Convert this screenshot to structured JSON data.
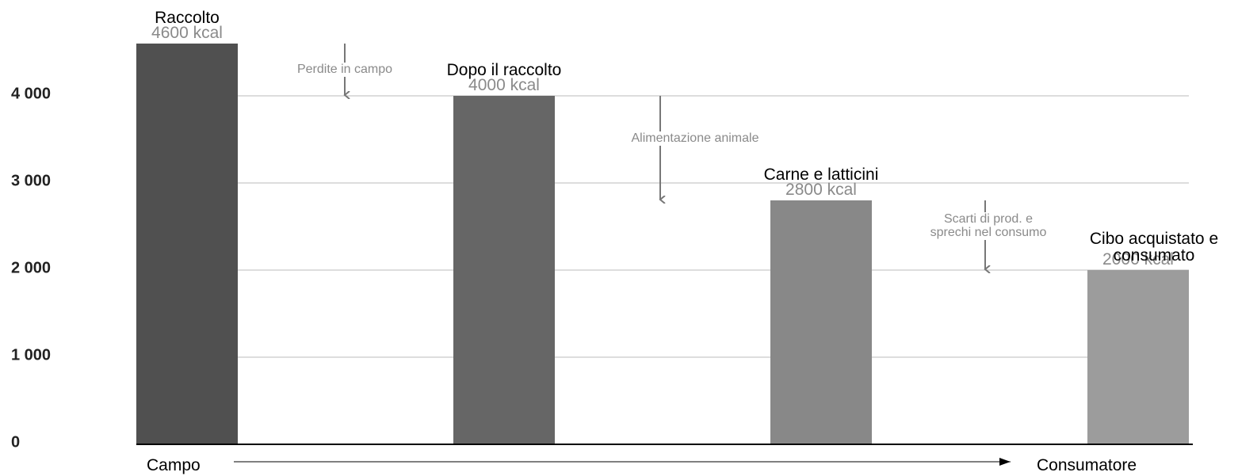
{
  "chart_data": {
    "type": "bar",
    "categories": [
      "Raccolto",
      "Dopo il raccolto",
      "Carne e latticini",
      "Cibo acquistato e consumato"
    ],
    "values": [
      4600,
      4000,
      2800,
      2000
    ],
    "value_labels": [
      "4600 kcal",
      "4000 kcal",
      "2800 kcal",
      "2000 kcal"
    ],
    "colors": [
      "#505050",
      "#666666",
      "#888888",
      "#9c9c9c"
    ],
    "ylim": [
      0,
      5000
    ],
    "yticks": [
      0,
      {
        "value": 1000,
        "label": "1 000"
      },
      {
        "value": 2000,
        "label": "2 000"
      },
      {
        "value": 3000,
        "label": "3 000"
      },
      {
        "value": 4000,
        "label": "4 000"
      }
    ],
    "grid": true,
    "annotations": [
      "Perdite in campo",
      "Alimentazione animale",
      "Scarti di prod. e sprechi nel consumo"
    ],
    "x_start_label": "Campo",
    "x_end_label": "Consumatore"
  }
}
